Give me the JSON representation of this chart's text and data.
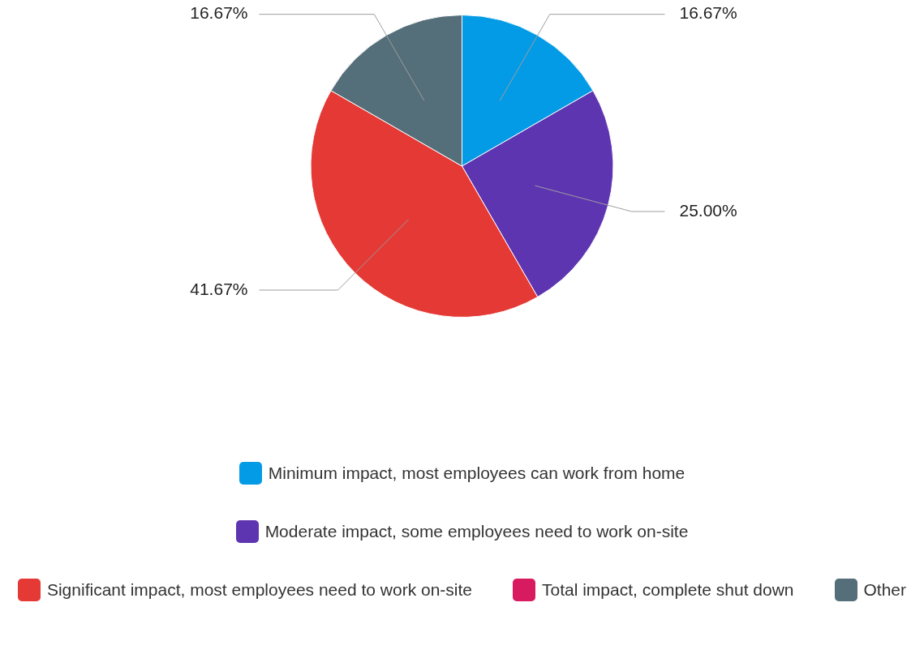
{
  "chart_data": {
    "type": "pie",
    "categories": [
      "Minimum impact, most employees can work from home",
      "Moderate impact, some employees need to work on-site",
      "Significant impact, most employees need to work on-site",
      "Total impact, complete shut down",
      "Other"
    ],
    "values": [
      16.67,
      25.0,
      41.67,
      0,
      16.67
    ],
    "value_labels": [
      "16.67%",
      "25.00%",
      "41.67%",
      null,
      "16.67%"
    ],
    "colors": [
      "#039be5",
      "#5e35b1",
      "#e53935",
      "#d81b60",
      "#546e7a"
    ],
    "legend": "bottom"
  }
}
